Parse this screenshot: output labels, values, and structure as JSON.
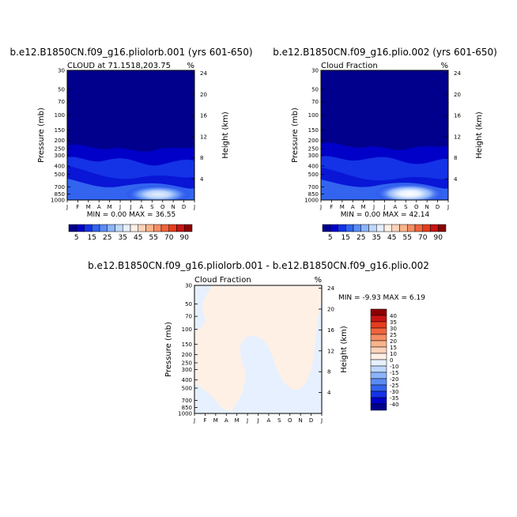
{
  "months": [
    "J",
    "F",
    "M",
    "A",
    "M",
    "J",
    "J",
    "A",
    "S",
    "O",
    "N",
    "D",
    "J"
  ],
  "pressure_ticks": [
    "30",
    "50",
    "70",
    "100",
    "150",
    "200",
    "250",
    "300",
    "400",
    "500",
    "700",
    "850",
    "1000"
  ],
  "height_ticks": [
    "24",
    "20",
    "16",
    "12",
    "8",
    "4"
  ],
  "axis_labels": {
    "pressure": "Pressure (mb)",
    "height": "Height (km)",
    "percent": "%"
  },
  "panels": [
    {
      "title": "b.e12.B1850CN.f09_g16.pliolorb.001 (yrs 601-650)",
      "subtitle": "CLOUD at 71.1518,203.75",
      "minmax": "MIN =   0.00 MAX =  36.55"
    },
    {
      "title": "b.e12.B1850CN.f09_g16.plio.002 (yrs 601-650)",
      "subtitle": "Cloud Fraction",
      "minmax": "MIN =   0.00 MAX =  42.14"
    },
    {
      "title": "b.e12.B1850CN.f09_g16.pliolorb.001 - b.e12.B1850CN.f09_g16.plio.002",
      "subtitle": "Cloud Fraction",
      "minmax": "MIN =  -9.93 MAX =   6.19"
    }
  ],
  "colorbar_abs": {
    "labels": [
      "5",
      "15",
      "25",
      "35",
      "45",
      "55",
      "70",
      "90"
    ],
    "colors": [
      "#00008c",
      "#0000c8",
      "#1432e6",
      "#3264f0",
      "#5a8cf5",
      "#8cb4fa",
      "#bed7fc",
      "#e6f0ff",
      "#fff0e6",
      "#fcd2b9",
      "#fab48c",
      "#f58c64",
      "#f0643c",
      "#e63c1e",
      "#c81414",
      "#8c0000"
    ]
  },
  "colorbar_diff": {
    "labels": [
      "40",
      "35",
      "30",
      "25",
      "20",
      "15",
      "10",
      "0",
      "-10",
      "-15",
      "-20",
      "-25",
      "-30",
      "-35",
      "-40"
    ],
    "colors": [
      "#8c0000",
      "#c81414",
      "#e63c1e",
      "#f0643c",
      "#f58c64",
      "#fab48c",
      "#fcd2b9",
      "#fff0e6",
      "#e6f0ff",
      "#bed7fc",
      "#8cb4fa",
      "#5a8cf5",
      "#3264f0",
      "#1432e6",
      "#0000c8",
      "#00008c"
    ]
  },
  "chart_data": [
    {
      "type": "heatmap",
      "title": "b.e12.B1850CN.f09_g16.pliolorb.001 (yrs 601-650)",
      "subtitle": "CLOUD at 71.1518,203.75",
      "xlabel": "",
      "ylabel": "Pressure (mb)",
      "ylabel_right": "Height (km)",
      "units": "%",
      "x": [
        "J",
        "F",
        "M",
        "A",
        "M",
        "J",
        "J",
        "A",
        "S",
        "O",
        "N",
        "D",
        "J"
      ],
      "y_pressure_mb": [
        30,
        50,
        70,
        100,
        150,
        200,
        250,
        300,
        400,
        500,
        700,
        850,
        1000
      ],
      "value_min": 0.0,
      "value_max": 36.55,
      "levels": [
        5,
        10,
        15,
        20,
        25,
        30,
        35,
        40,
        45,
        50,
        55,
        60,
        70,
        80,
        90
      ]
    },
    {
      "type": "heatmap",
      "title": "b.e12.B1850CN.f09_g16.plio.002 (yrs 601-650)",
      "subtitle": "Cloud Fraction",
      "xlabel": "",
      "ylabel": "Pressure (mb)",
      "ylabel_right": "Height (km)",
      "units": "%",
      "x": [
        "J",
        "F",
        "M",
        "A",
        "M",
        "J",
        "J",
        "A",
        "S",
        "O",
        "N",
        "D",
        "J"
      ],
      "y_pressure_mb": [
        30,
        50,
        70,
        100,
        150,
        200,
        250,
        300,
        400,
        500,
        700,
        850,
        1000
      ],
      "value_min": 0.0,
      "value_max": 42.14,
      "levels": [
        5,
        10,
        15,
        20,
        25,
        30,
        35,
        40,
        45,
        50,
        55,
        60,
        70,
        80,
        90
      ]
    },
    {
      "type": "heatmap",
      "title": "b.e12.B1850CN.f09_g16.pliolorb.001 - b.e12.B1850CN.f09_g16.plio.002",
      "subtitle": "Cloud Fraction",
      "xlabel": "",
      "ylabel": "Pressure (mb)",
      "ylabel_right": "Height (km)",
      "units": "%",
      "x": [
        "J",
        "F",
        "M",
        "A",
        "M",
        "J",
        "J",
        "A",
        "S",
        "O",
        "N",
        "D",
        "J"
      ],
      "y_pressure_mb": [
        30,
        50,
        70,
        100,
        150,
        200,
        250,
        300,
        400,
        500,
        700,
        850,
        1000
      ],
      "value_min": -9.93,
      "value_max": 6.19,
      "levels": [
        -40,
        -35,
        -30,
        -25,
        -20,
        -15,
        -10,
        0,
        10,
        15,
        20,
        25,
        30,
        35,
        40
      ]
    }
  ]
}
